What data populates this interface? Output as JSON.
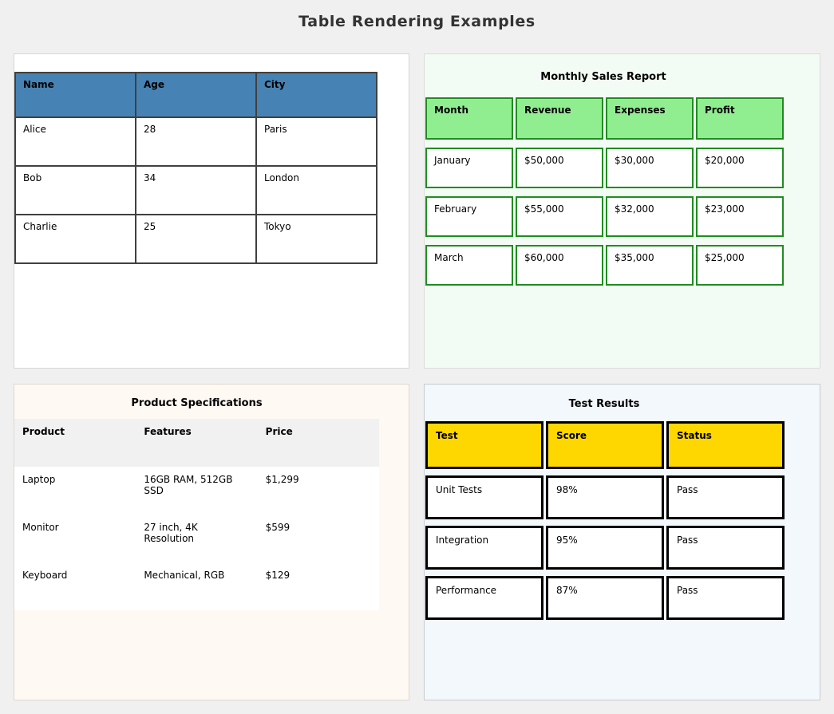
{
  "page": {
    "title": "Table Rendering Examples"
  },
  "panels": {
    "simple": {
      "table": {
        "headers": [
          "Name",
          "Age",
          "City"
        ],
        "rows": [
          [
            "Alice",
            "28",
            "Paris"
          ],
          [
            "Bob",
            "34",
            "London"
          ],
          [
            "Charlie",
            "25",
            "Tokyo"
          ]
        ]
      }
    },
    "sales": {
      "title": "Monthly Sales Report",
      "table": {
        "headers": [
          "Month",
          "Revenue",
          "Expenses",
          "Profit"
        ],
        "rows": [
          [
            "January",
            "$50,000",
            "$30,000",
            "$20,000"
          ],
          [
            "February",
            "$55,000",
            "$32,000",
            "$23,000"
          ],
          [
            "March",
            "$60,000",
            "$35,000",
            "$25,000"
          ]
        ]
      }
    },
    "products": {
      "title": "Product Specifications",
      "table": {
        "headers": [
          "Product",
          "Features",
          "Price"
        ],
        "rows": [
          [
            "Laptop",
            "16GB RAM, 512GB SSD",
            "$1,299"
          ],
          [
            "Monitor",
            "27 inch, 4K Resolution",
            "$599"
          ],
          [
            "Keyboard",
            "Mechanical, RGB",
            "$129"
          ]
        ]
      }
    },
    "tests": {
      "title": "Test Results",
      "table": {
        "headers": [
          "Test",
          "Score",
          "Status"
        ],
        "rows": [
          [
            "Unit Tests",
            "98%",
            "Pass"
          ],
          [
            "Integration",
            "95%",
            "Pass"
          ],
          [
            "Performance",
            "87%",
            "Pass"
          ]
        ]
      }
    }
  },
  "colors": {
    "simple_header_bg": "#4683b4",
    "sales_header_bg": "#90ee90",
    "sales_border": "#1f8c1f",
    "sales_panel_bg": "#f3fcf4",
    "products_header_bg": "#f1f1f1",
    "products_panel_bg": "#fff9f3",
    "tests_header_bg": "#ffd700",
    "tests_border": "#000000",
    "tests_panel_bg": "#f3f8fc"
  }
}
